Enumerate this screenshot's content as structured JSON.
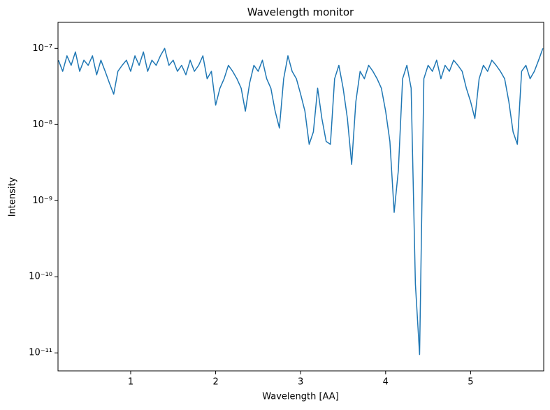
{
  "chart_data": {
    "type": "line",
    "title": "Wavelength monitor",
    "x_label": "Wavelength [AA]",
    "y_label": "Intensity",
    "log_y": true,
    "color": "#1f77b4",
    "xlim": [
      0.145,
      5.86
    ],
    "xticks": [
      1,
      2,
      3,
      4,
      5
    ],
    "ylim": [
      5.8e-12,
      2.2e-07
    ],
    "yticks": [
      {
        "value": 1e-11,
        "label": "10⁻¹¹"
      },
      {
        "value": 1e-10,
        "label": "10⁻¹⁰"
      },
      {
        "value": 1e-09,
        "label": "10⁻⁹"
      },
      {
        "value": 1e-08,
        "label": "10⁻⁸"
      },
      {
        "value": 1e-07,
        "label": "10⁻⁷"
      }
    ],
    "x": [
      0.15,
      0.2,
      0.25,
      0.3,
      0.35,
      0.4,
      0.45,
      0.5,
      0.55,
      0.6,
      0.65,
      0.7,
      0.75,
      0.8,
      0.85,
      0.9,
      0.95,
      1.0,
      1.05,
      1.1,
      1.15,
      1.2,
      1.25,
      1.3,
      1.35,
      1.4,
      1.45,
      1.5,
      1.55,
      1.6,
      1.65,
      1.7,
      1.75,
      1.8,
      1.85,
      1.9,
      1.95,
      2.0,
      2.05,
      2.1,
      2.15,
      2.2,
      2.25,
      2.3,
      2.35,
      2.4,
      2.45,
      2.5,
      2.55,
      2.6,
      2.65,
      2.7,
      2.75,
      2.8,
      2.85,
      2.9,
      2.95,
      3.0,
      3.05,
      3.1,
      3.15,
      3.2,
      3.25,
      3.3,
      3.35,
      3.4,
      3.45,
      3.5,
      3.55,
      3.6,
      3.65,
      3.7,
      3.75,
      3.8,
      3.85,
      3.9,
      3.95,
      4.0,
      4.05,
      4.1,
      4.15,
      4.2,
      4.25,
      4.3,
      4.35,
      4.4,
      4.45,
      4.5,
      4.55,
      4.6,
      4.65,
      4.7,
      4.75,
      4.8,
      4.85,
      4.9,
      4.95,
      5.0,
      5.05,
      5.1,
      5.15,
      5.2,
      5.25,
      5.3,
      5.35,
      5.4,
      5.45,
      5.5,
      5.55,
      5.6,
      5.65,
      5.7,
      5.75,
      5.8,
      5.85
    ],
    "values": [
      7e-08,
      5e-08,
      8e-08,
      6e-08,
      9e-08,
      5e-08,
      7e-08,
      6e-08,
      8e-08,
      4.5e-08,
      7e-08,
      5e-08,
      3.5e-08,
      2.5e-08,
      5e-08,
      6e-08,
      7e-08,
      5e-08,
      8e-08,
      6e-08,
      9e-08,
      5e-08,
      7e-08,
      6e-08,
      8e-08,
      1e-07,
      6e-08,
      7e-08,
      5e-08,
      6e-08,
      4.5e-08,
      7e-08,
      5e-08,
      6e-08,
      8e-08,
      4e-08,
      5e-08,
      1.8e-08,
      3e-08,
      4e-08,
      6e-08,
      5e-08,
      4e-08,
      3e-08,
      1.5e-08,
      3.5e-08,
      6e-08,
      5e-08,
      7e-08,
      4e-08,
      3e-08,
      1.5e-08,
      9e-09,
      4e-08,
      8e-08,
      5e-08,
      4e-08,
      2.5e-08,
      1.5e-08,
      5.5e-09,
      8e-09,
      3e-08,
      1.2e-08,
      6e-09,
      5.5e-09,
      4e-08,
      6e-08,
      3e-08,
      1.2e-08,
      3e-09,
      2e-08,
      5e-08,
      4e-08,
      6e-08,
      5e-08,
      4e-08,
      3e-08,
      1.5e-08,
      6e-09,
      7e-10,
      2.5e-09,
      4e-08,
      6e-08,
      3e-08,
      8e-11,
      9.5e-12,
      4e-08,
      6e-08,
      5e-08,
      7e-08,
      4e-08,
      6e-08,
      5e-08,
      7e-08,
      6e-08,
      5e-08,
      3e-08,
      2e-08,
      1.2e-08,
      4e-08,
      6e-08,
      5e-08,
      7e-08,
      6e-08,
      5e-08,
      4e-08,
      2e-08,
      8e-09,
      5.5e-09,
      5e-08,
      6e-08,
      4e-08,
      5e-08,
      7e-08,
      1e-07
    ]
  }
}
